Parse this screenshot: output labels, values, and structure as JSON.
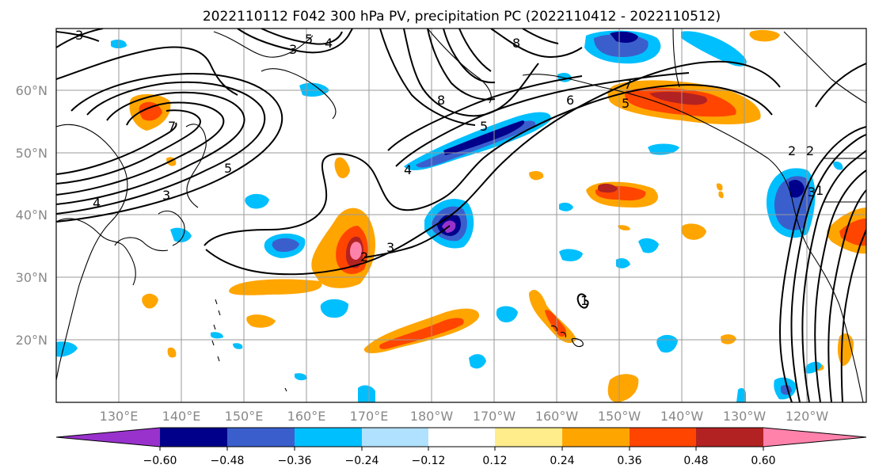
{
  "title": "2022110112 F042 300 hPa PV, precipitation PC (2022110412 - 2022110512)",
  "lat_labels": [
    "60°N",
    "50°N",
    "40°N",
    "30°N",
    "20°N"
  ],
  "lon_labels": [
    "130°E",
    "140°E",
    "150°E",
    "160°E",
    "170°E",
    "180°W",
    "170°W",
    "160°W",
    "150°W",
    "140°W",
    "130°W",
    "120°W"
  ],
  "colorbar": {
    "ticks": [
      "−0.60",
      "−0.48",
      "−0.36",
      "−0.24",
      "−0.12",
      "0.12",
      "0.24",
      "0.36",
      "0.48",
      "0.60"
    ],
    "colors": [
      "#9932cc",
      "#00008b",
      "#3a5fcd",
      "#00bfff",
      "#b0e2ff",
      "#ffffff",
      "#ffec8b",
      "#ffa500",
      "#ff4500",
      "#b22222",
      "#ff82ab"
    ]
  },
  "contour_labels": [
    "3",
    "2",
    "5",
    "4",
    "3",
    "8",
    "6",
    "5",
    "4",
    "7",
    "1",
    "2",
    "3",
    "4",
    "5",
    "7",
    "3",
    "2",
    "3",
    "1",
    "5",
    "8"
  ]
}
